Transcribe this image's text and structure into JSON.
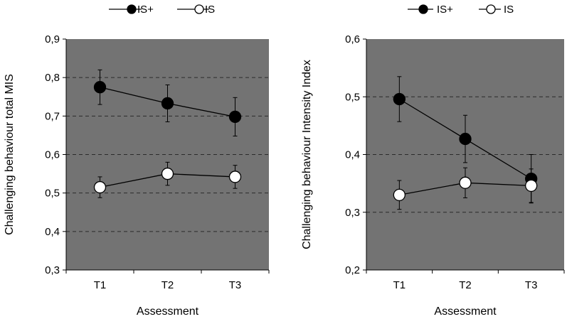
{
  "chart_data": [
    {
      "type": "line",
      "title": "",
      "xlabel": "Assessment",
      "ylabel": "Challenging behaviour total MIS",
      "categories": [
        "T1",
        "T2",
        "T3"
      ],
      "ylim": [
        0.3,
        0.9
      ],
      "yticks": [
        0.3,
        0.4,
        0.5,
        0.6,
        0.7,
        0.8,
        0.9
      ],
      "ytick_labels": [
        "0,3",
        "0,4",
        "0,5",
        "0,6",
        "0,7",
        "0,8",
        "0,9"
      ],
      "grid": "dashed horizontal",
      "legend_position": "top",
      "series": [
        {
          "name": "IS+",
          "marker": "filled",
          "values": [
            0.775,
            0.733,
            0.698
          ],
          "errors": [
            0.045,
            0.048,
            0.05
          ]
        },
        {
          "name": "IS",
          "marker": "open",
          "values": [
            0.515,
            0.55,
            0.542
          ],
          "errors": [
            0.027,
            0.03,
            0.03
          ]
        }
      ]
    },
    {
      "type": "line",
      "title": "",
      "xlabel": "Assessment",
      "ylabel": "Challenging behaviour Intensity Index",
      "categories": [
        "T1",
        "T2",
        "T3"
      ],
      "ylim": [
        0.2,
        0.6
      ],
      "yticks": [
        0.2,
        0.3,
        0.4,
        0.5,
        0.6
      ],
      "ytick_labels": [
        "0,2",
        "0,3",
        "0,4",
        "0,5",
        "0,6"
      ],
      "grid": "dashed horizontal",
      "legend_position": "top",
      "series": [
        {
          "name": "IS+",
          "marker": "filled",
          "values": [
            0.496,
            0.427,
            0.358
          ],
          "errors": [
            0.039,
            0.041,
            0.042
          ]
        },
        {
          "name": "IS",
          "marker": "open",
          "values": [
            0.33,
            0.351,
            0.346
          ],
          "errors": [
            0.025,
            0.026,
            0.029
          ]
        }
      ]
    }
  ]
}
